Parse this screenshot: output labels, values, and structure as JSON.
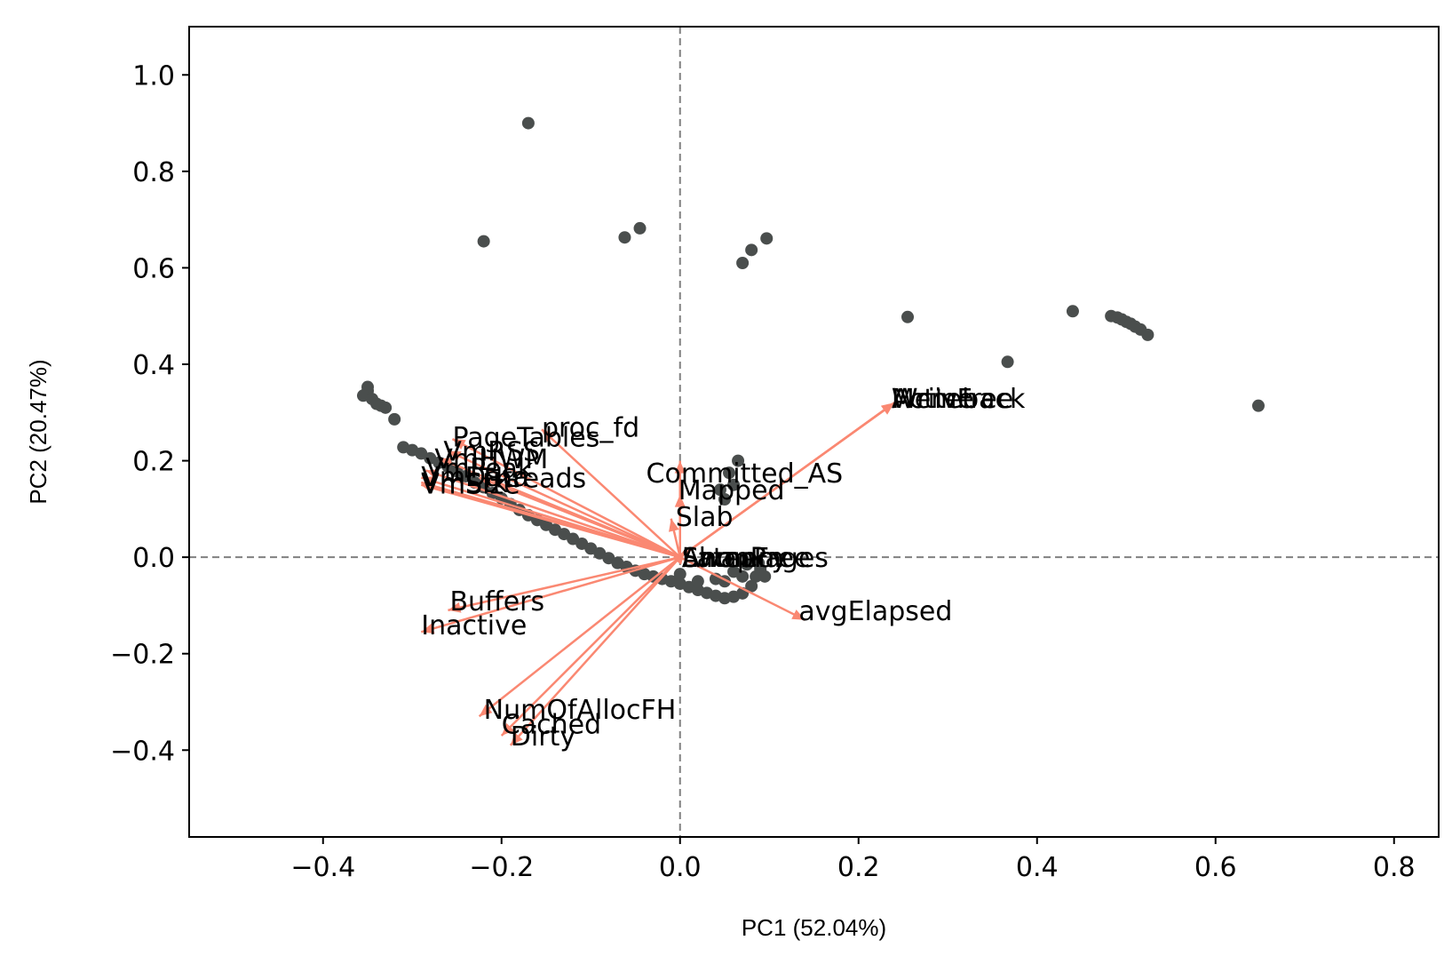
{
  "chart_data": {
    "type": "scatter",
    "subtype": "pca-biplot",
    "title": "",
    "xlabel": "PC1 (52.04%)",
    "ylabel": "PC2 (20.47%)",
    "xlim": [
      -0.55,
      0.85
    ],
    "ylim": [
      -0.58,
      1.1
    ],
    "xticks": [
      -0.4,
      -0.2,
      0.0,
      0.2,
      0.4,
      0.6,
      0.8
    ],
    "yticks": [
      -0.4,
      -0.2,
      0.0,
      0.2,
      0.4,
      0.6,
      0.8,
      1.0
    ],
    "xtick_labels": [
      "−0.4",
      "−0.2",
      "0.0",
      "0.2",
      "0.4",
      "0.6",
      "0.8"
    ],
    "ytick_labels": [
      "−0.4",
      "−0.2",
      "0.0",
      "0.2",
      "0.4",
      "0.6",
      "0.8",
      "1.0"
    ],
    "grid": false,
    "reference_lines": {
      "x": 0,
      "y": 0,
      "style": "dashed"
    },
    "colors": {
      "points": "#4a4e4d",
      "arrows": "#fa8872",
      "axes": "#000000",
      "reference": "#808080"
    },
    "points": [
      [
        -0.17,
        0.9
      ],
      [
        -0.22,
        0.655
      ],
      [
        -0.062,
        0.663
      ],
      [
        -0.045,
        0.682
      ],
      [
        0.07,
        0.61
      ],
      [
        0.08,
        0.637
      ],
      [
        0.097,
        0.661
      ],
      [
        0.255,
        0.498
      ],
      [
        0.367,
        0.405
      ],
      [
        0.44,
        0.51
      ],
      [
        0.483,
        0.5
      ],
      [
        0.49,
        0.497
      ],
      [
        0.495,
        0.493
      ],
      [
        0.5,
        0.488
      ],
      [
        0.505,
        0.484
      ],
      [
        0.51,
        0.478
      ],
      [
        0.516,
        0.472
      ],
      [
        0.524,
        0.461
      ],
      [
        0.648,
        0.314
      ],
      [
        -0.35,
        0.353
      ],
      [
        -0.35,
        0.345
      ],
      [
        -0.355,
        0.335
      ],
      [
        -0.345,
        0.328
      ],
      [
        -0.34,
        0.318
      ],
      [
        -0.335,
        0.314
      ],
      [
        -0.33,
        0.31
      ],
      [
        -0.32,
        0.286
      ],
      [
        -0.31,
        0.228
      ],
      [
        -0.3,
        0.222
      ],
      [
        -0.29,
        0.215
      ],
      [
        -0.28,
        0.205
      ],
      [
        -0.27,
        0.196
      ],
      [
        -0.26,
        0.188
      ],
      [
        -0.25,
        0.178
      ],
      [
        -0.24,
        0.168
      ],
      [
        -0.23,
        0.155
      ],
      [
        -0.22,
        0.145
      ],
      [
        -0.21,
        0.133
      ],
      [
        -0.2,
        0.122
      ],
      [
        -0.19,
        0.11
      ],
      [
        -0.18,
        0.098
      ],
      [
        -0.17,
        0.087
      ],
      [
        -0.16,
        0.077
      ],
      [
        -0.15,
        0.067
      ],
      [
        -0.14,
        0.057
      ],
      [
        -0.13,
        0.048
      ],
      [
        -0.12,
        0.038
      ],
      [
        -0.11,
        0.028
      ],
      [
        -0.1,
        0.018
      ],
      [
        -0.09,
        0.008
      ],
      [
        -0.08,
        -0.002
      ],
      [
        -0.07,
        -0.012
      ],
      [
        -0.06,
        -0.02
      ],
      [
        -0.05,
        -0.028
      ],
      [
        -0.04,
        -0.035
      ],
      [
        -0.03,
        -0.04
      ],
      [
        -0.02,
        -0.045
      ],
      [
        -0.01,
        -0.05
      ],
      [
        0.0,
        -0.055
      ],
      [
        0.01,
        -0.062
      ],
      [
        0.02,
        -0.068
      ],
      [
        0.03,
        -0.074
      ],
      [
        0.04,
        -0.08
      ],
      [
        0.05,
        -0.085
      ],
      [
        0.06,
        -0.082
      ],
      [
        0.07,
        -0.075
      ],
      [
        0.08,
        -0.06
      ],
      [
        0.085,
        -0.04
      ],
      [
        0.09,
        -0.025
      ],
      [
        0.095,
        -0.04
      ],
      [
        0.088,
        -0.012
      ],
      [
        0.075,
        -0.015
      ],
      [
        0.06,
        -0.03
      ],
      [
        0.04,
        -0.045
      ],
      [
        0.02,
        -0.05
      ],
      [
        0.0,
        -0.035
      ],
      [
        0.05,
        -0.05
      ],
      [
        0.07,
        -0.04
      ],
      [
        0.06,
        0.15
      ],
      [
        0.055,
        0.175
      ],
      [
        0.05,
        0.12
      ],
      [
        0.045,
        0.14
      ],
      [
        0.065,
        0.2
      ]
    ],
    "loadings": [
      {
        "label": "Writeback",
        "x": 0.24,
        "y": 0.32,
        "lx": 0.237,
        "ly": 0.33
      },
      {
        "label": "MemFree",
        "x": 0.24,
        "y": 0.32,
        "lx": 0.237,
        "ly": 0.33
      },
      {
        "label": "Active",
        "x": 0.24,
        "y": 0.32,
        "lx": 0.237,
        "ly": 0.33
      },
      {
        "label": "Committed_AS",
        "x": 0.0,
        "y": 0.2,
        "lx": -0.038,
        "ly": 0.175
      },
      {
        "label": "Mapped",
        "x": 0.0,
        "y": 0.13,
        "lx": -0.002,
        "ly": 0.14
      },
      {
        "label": "Slab",
        "x": -0.01,
        "y": 0.08,
        "lx": -0.005,
        "ly": 0.085
      },
      {
        "label": "AnonPages",
        "x": 0.005,
        "y": 0.012,
        "lx": 0.002,
        "ly": 0.0
      },
      {
        "label": "Latency",
        "x": 0.005,
        "y": 0.012,
        "lx": 0.002,
        "ly": 0.0
      },
      {
        "label": "SwapFree",
        "x": 0.005,
        "y": 0.012,
        "lx": 0.002,
        "ly": 0.0
      },
      {
        "label": "Shmem",
        "x": 0.005,
        "y": 0.012,
        "lx": 0.002,
        "ly": 0.0
      },
      {
        "label": "avgElapsed",
        "x": 0.14,
        "y": -0.13,
        "lx": 0.133,
        "ly": -0.11
      },
      {
        "label": "proc_fd",
        "x": -0.155,
        "y": 0.265,
        "lx": -0.155,
        "ly": 0.27
      },
      {
        "label": "PageTables",
        "x": -0.255,
        "y": 0.245,
        "lx": -0.255,
        "ly": 0.25
      },
      {
        "label": "VmRSS",
        "x": -0.26,
        "y": 0.22,
        "lx": -0.265,
        "ly": 0.22
      },
      {
        "label": "VmHWM",
        "x": -0.27,
        "y": 0.205,
        "lx": -0.275,
        "ly": 0.205
      },
      {
        "label": "VmPeak",
        "x": -0.285,
        "y": 0.18,
        "lx": -0.285,
        "ly": 0.185
      },
      {
        "label": "Threads",
        "x": -0.225,
        "y": 0.165,
        "lx": -0.225,
        "ly": 0.165
      },
      {
        "label": "VmData",
        "x": -0.29,
        "y": 0.165,
        "lx": -0.29,
        "ly": 0.168
      },
      {
        "label": "VmSize",
        "x": -0.29,
        "y": 0.155,
        "lx": -0.29,
        "ly": 0.152
      },
      {
        "label": "VmStk",
        "x": -0.29,
        "y": 0.15,
        "lx": -0.29,
        "ly": 0.155
      },
      {
        "label": "Buffers",
        "x": -0.26,
        "y": -0.11,
        "lx": -0.258,
        "ly": -0.09
      },
      {
        "label": "Inactive",
        "x": -0.29,
        "y": -0.155,
        "lx": -0.29,
        "ly": -0.14
      },
      {
        "label": "NumOfAllocFH",
        "x": -0.225,
        "y": -0.33,
        "lx": -0.22,
        "ly": -0.315
      },
      {
        "label": "Cached",
        "x": -0.2,
        "y": -0.37,
        "lx": -0.2,
        "ly": -0.345
      },
      {
        "label": "Dirty",
        "x": -0.19,
        "y": -0.39,
        "lx": -0.19,
        "ly": -0.37
      }
    ]
  }
}
